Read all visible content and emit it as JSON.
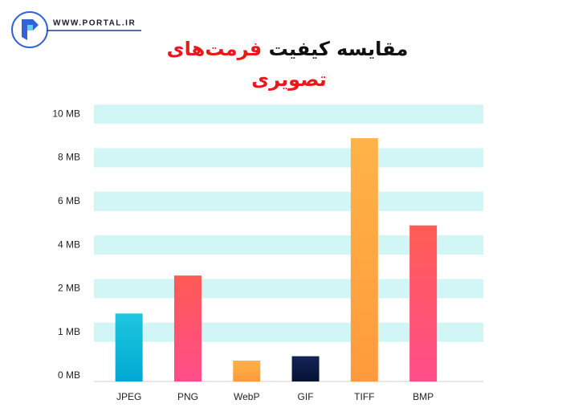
{
  "header": {
    "site": "WWW.PORTAL.IR"
  },
  "chart_data": {
    "type": "bar",
    "title": [
      "مقایسه کیفیت",
      "فرمت‌های",
      "تصویری"
    ],
    "title_colors": [
      "#111111",
      "#e8191c",
      "#e8191c"
    ],
    "categories": [
      "JPEG",
      "PNG",
      "WebP",
      "GIF",
      "TIFF",
      "BMP"
    ],
    "values": [
      1.43,
      2.6,
      0.35,
      0.45,
      8.9,
      4.9
    ],
    "colors": [
      [
        "#1fc6e0",
        "#00a9d2"
      ],
      [
        "#ff5a55",
        "#ff4d8a"
      ],
      [
        "#ffb347",
        "#ff9a3c"
      ],
      [
        "#122356",
        "#061335"
      ],
      [
        "#ffb347",
        "#ff9a3c"
      ],
      [
        "#ff5d55",
        "#ff4d8a"
      ]
    ],
    "ylim": [
      0,
      10
    ],
    "yticks": [
      {
        "value": 0,
        "label": "0 MB"
      },
      {
        "value": 1,
        "label": "1 MB"
      },
      {
        "value": 2,
        "label": "2 MB"
      },
      {
        "value": 4,
        "label": "4 MB"
      },
      {
        "value": 6,
        "label": "6 MB"
      },
      {
        "value": 8,
        "label": "8 MB"
      },
      {
        "value": 10,
        "label": "10 MB"
      }
    ],
    "grid": true,
    "grid_color": "#d2f5f5"
  }
}
